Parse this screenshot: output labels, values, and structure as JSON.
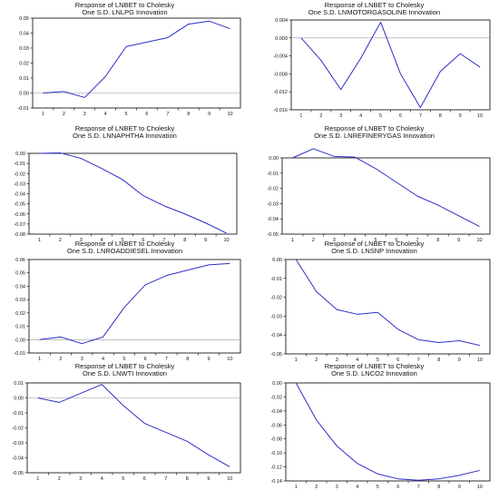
{
  "colors": {
    "line": "#2e2ec8",
    "zero_line": "#999999",
    "axis": "#000000"
  },
  "chart_data": [
    {
      "type": "line",
      "title": "Response of LNBET to Cholesky",
      "subtitle": "One S.D. LNLPG Innovation",
      "x": [
        1,
        2,
        3,
        4,
        5,
        6,
        7,
        8,
        9,
        10
      ],
      "values": [
        0.0,
        0.001,
        -0.003,
        0.011,
        0.031,
        0.034,
        0.037,
        0.046,
        0.048,
        0.043
      ],
      "ylim": [
        -0.01,
        0.05
      ],
      "yticks": [
        -0.01,
        0.0,
        0.01,
        0.02,
        0.03,
        0.04,
        0.05
      ],
      "ytick_labels": [
        "-0.01",
        "0.00",
        "0.01",
        "0.02",
        "0.03",
        "0.04",
        "0.05"
      ],
      "xtick_labels": [
        "1",
        "2",
        "3",
        "4",
        "5",
        "6",
        "7",
        "8",
        "9",
        "10"
      ],
      "grid": false
    },
    {
      "type": "line",
      "title": "Response of LNBET to Cholesky",
      "subtitle": "One S.D. LNMOTORGASOLINE Innovation",
      "x": [
        1,
        2,
        3,
        4,
        5,
        6,
        7,
        8,
        9,
        10
      ],
      "values": [
        0.0,
        -0.005,
        -0.0115,
        -0.0045,
        0.0035,
        -0.008,
        -0.0155,
        -0.0075,
        -0.0035,
        -0.0065
      ],
      "ylim": [
        -0.016,
        0.004
      ],
      "yticks": [
        -0.016,
        -0.012,
        -0.008,
        -0.004,
        0.0,
        0.004
      ],
      "ytick_labels": [
        "-0.016",
        "-0.012",
        "-0.008",
        "-0.004",
        "0.000",
        "0.004"
      ],
      "xtick_labels": [
        "1",
        "2",
        "3",
        "4",
        "5",
        "6",
        "7",
        "8",
        "9",
        "10"
      ],
      "grid": false
    },
    {
      "type": "line",
      "title": "Response of LNBET to Cholesky",
      "subtitle": "One S.D. LNNAPHTHA Innovation",
      "x": [
        1,
        2,
        3,
        4,
        5,
        6,
        7,
        8,
        9,
        10
      ],
      "values": [
        0.0,
        0.0005,
        -0.005,
        -0.015,
        -0.026,
        -0.042,
        -0.052,
        -0.06,
        -0.069,
        -0.079
      ],
      "ylim": [
        -0.08,
        0.0
      ],
      "yticks": [
        -0.08,
        -0.07,
        -0.06,
        -0.05,
        -0.04,
        -0.03,
        -0.02,
        -0.01,
        0.0
      ],
      "ytick_labels": [
        "-0.08",
        "-0.07",
        "-0.06",
        "-0.05",
        "-0.04",
        "-0.03",
        "-0.02",
        "-0.01",
        "0.00"
      ],
      "xtick_labels": [
        "1",
        "2",
        "3",
        "4",
        "5",
        "6",
        "7",
        "8",
        "9",
        "10"
      ],
      "grid": false
    },
    {
      "type": "line",
      "title": "Response of LNBET to Cholesky",
      "subtitle": "One S.D. LNREFINERYGAS Innovation",
      "x": [
        1,
        2,
        3,
        4,
        5,
        6,
        7,
        8,
        9,
        10
      ],
      "values": [
        0.0,
        0.006,
        0.001,
        0.0005,
        -0.007,
        -0.016,
        -0.025,
        -0.031,
        -0.038,
        -0.045
      ],
      "ylim": [
        -0.05,
        0.0
      ],
      "yticks": [
        -0.05,
        -0.04,
        -0.03,
        -0.02,
        -0.01,
        0.0
      ],
      "ytick_labels": [
        "-0.05",
        "-0.04",
        "-0.03",
        "-0.02",
        "-0.01",
        "0.00"
      ],
      "xtick_labels": [
        "1",
        "2",
        "3",
        "4",
        "5",
        "6",
        "7",
        "8",
        "9",
        "10"
      ],
      "grid": false
    },
    {
      "type": "line",
      "title": "Response of LNBET to Cholesky",
      "subtitle": "One S.D. LNROADDIESEL Innovation",
      "x": [
        1,
        2,
        3,
        4,
        5,
        6,
        7,
        8,
        9,
        10
      ],
      "values": [
        0.0,
        0.002,
        -0.003,
        0.002,
        0.024,
        0.041,
        0.048,
        0.052,
        0.056,
        0.057
      ],
      "ylim": [
        -0.01,
        0.06
      ],
      "yticks": [
        -0.01,
        0.0,
        0.01,
        0.02,
        0.03,
        0.04,
        0.05,
        0.06
      ],
      "ytick_labels": [
        "-0.01",
        "0.00",
        "0.01",
        "0.02",
        "0.03",
        "0.04",
        "0.05",
        "0.06"
      ],
      "xtick_labels": [
        "1",
        "2",
        "3",
        "4",
        "5",
        "6",
        "7",
        "8",
        "9",
        "10"
      ],
      "grid": false
    },
    {
      "type": "line",
      "title": "Response of LNBET to Cholesky",
      "subtitle": "One S.D. LNSNP Innovation",
      "x": [
        1,
        2,
        3,
        4,
        5,
        6,
        7,
        8,
        9,
        10
      ],
      "values": [
        0.0,
        -0.017,
        -0.0265,
        -0.029,
        -0.028,
        -0.037,
        -0.0425,
        -0.044,
        -0.043,
        -0.0455
      ],
      "ylim": [
        -0.05,
        0.0
      ],
      "yticks": [
        -0.05,
        -0.04,
        -0.03,
        -0.02,
        -0.01,
        0.0
      ],
      "ytick_labels": [
        "-0.05",
        "-0.04",
        "-0.03",
        "-0.02",
        "-0.01",
        "0.00"
      ],
      "xtick_labels": [
        "1",
        "2",
        "3",
        "4",
        "5",
        "6",
        "7",
        "8",
        "9",
        "10"
      ],
      "grid": false
    },
    {
      "type": "line",
      "title": "Response of LNBET to Cholesky",
      "subtitle": "One S.D. LNWTI Innovation",
      "x": [
        1,
        2,
        3,
        4,
        5,
        6,
        7,
        8,
        9,
        10
      ],
      "values": [
        0.0,
        -0.003,
        0.003,
        0.009,
        -0.005,
        -0.017,
        -0.023,
        -0.029,
        -0.038,
        -0.046
      ],
      "ylim": [
        -0.05,
        0.01
      ],
      "yticks": [
        -0.05,
        -0.04,
        -0.03,
        -0.02,
        -0.01,
        0.0,
        0.01
      ],
      "ytick_labels": [
        "-0.05",
        "-0.04",
        "-0.03",
        "-0.02",
        "-0.01",
        "0.00",
        "0.01"
      ],
      "xtick_labels": [
        "1",
        "2",
        "3",
        "4",
        "5",
        "6",
        "7",
        "8",
        "9",
        "10"
      ],
      "grid": false
    },
    {
      "type": "line",
      "title": "Response of LNBET to Cholesky",
      "subtitle": "One S.D. LNCO2 Innovation",
      "x": [
        1,
        2,
        3,
        4,
        5,
        6,
        7,
        8,
        9,
        10
      ],
      "values": [
        0.0,
        -0.053,
        -0.09,
        -0.115,
        -0.13,
        -0.137,
        -0.139,
        -0.137,
        -0.132,
        -0.125
      ],
      "ylim": [
        -0.14,
        0.0
      ],
      "yticks": [
        -0.14,
        -0.12,
        -0.1,
        -0.08,
        -0.06,
        -0.04,
        -0.02,
        0.0
      ],
      "ytick_labels": [
        "-0.14",
        "-0.12",
        "-0.10",
        "-0.08",
        "-0.06",
        "-0.04",
        "-0.02",
        "0.00"
      ],
      "xtick_labels": [
        "1",
        "2",
        "3",
        "4",
        "5",
        "6",
        "7",
        "8",
        "9",
        "10"
      ],
      "grid": false
    }
  ]
}
